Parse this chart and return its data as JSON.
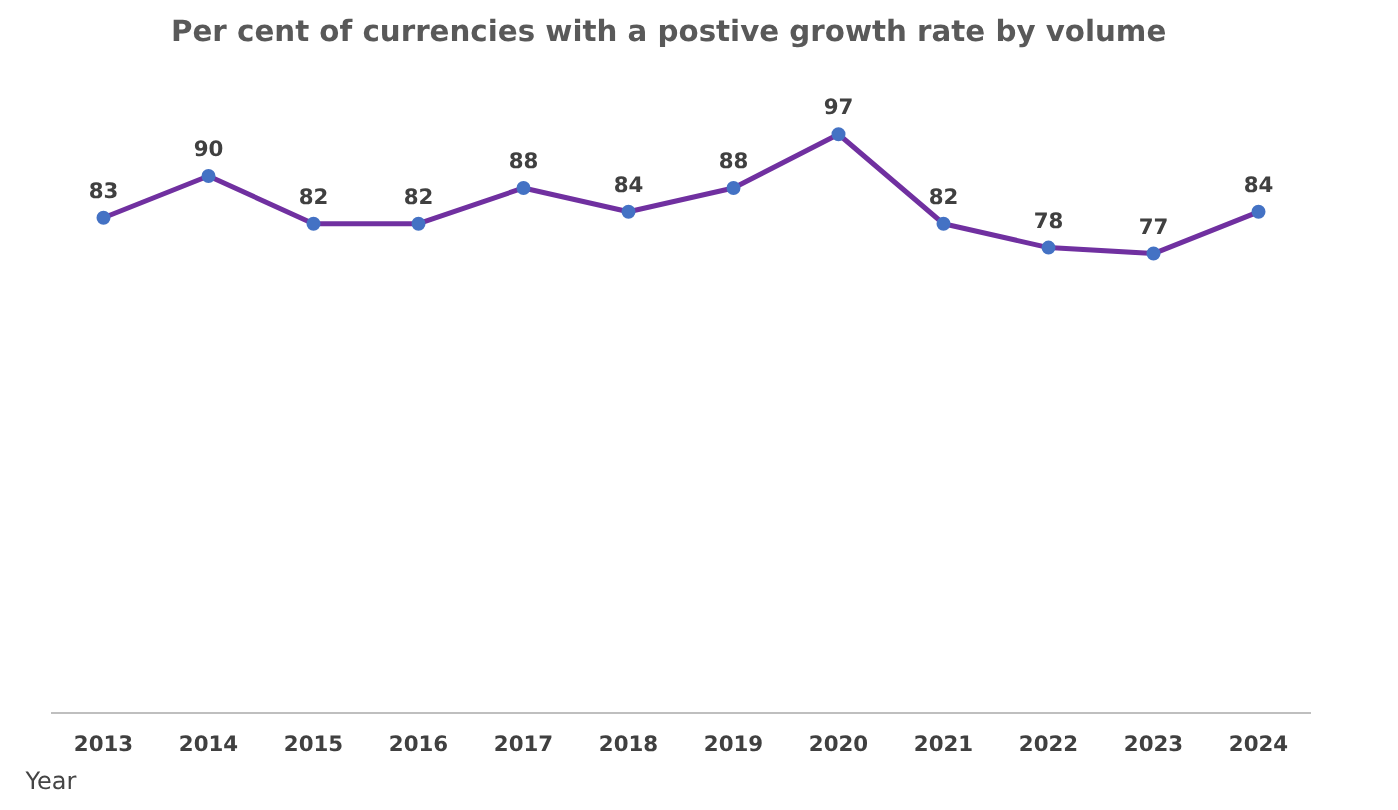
{
  "chart_data": {
    "type": "line",
    "title": "Per cent of currencies with a postive growth rate by volume",
    "xlabel": "Year",
    "categories": [
      "2013",
      "2014",
      "2015",
      "2016",
      "2017",
      "2018",
      "2019",
      "2020",
      "2021",
      "2022",
      "2023",
      "2024"
    ],
    "series": [
      {
        "color": "#7030a0",
        "values": [
          83,
          90,
          82,
          82,
          88,
          84,
          88,
          97,
          82,
          78,
          77,
          84
        ]
      }
    ],
    "marker": "circle",
    "data_labels": true,
    "grid": false,
    "tick_labels": "x",
    "line_style": "solid"
  }
}
